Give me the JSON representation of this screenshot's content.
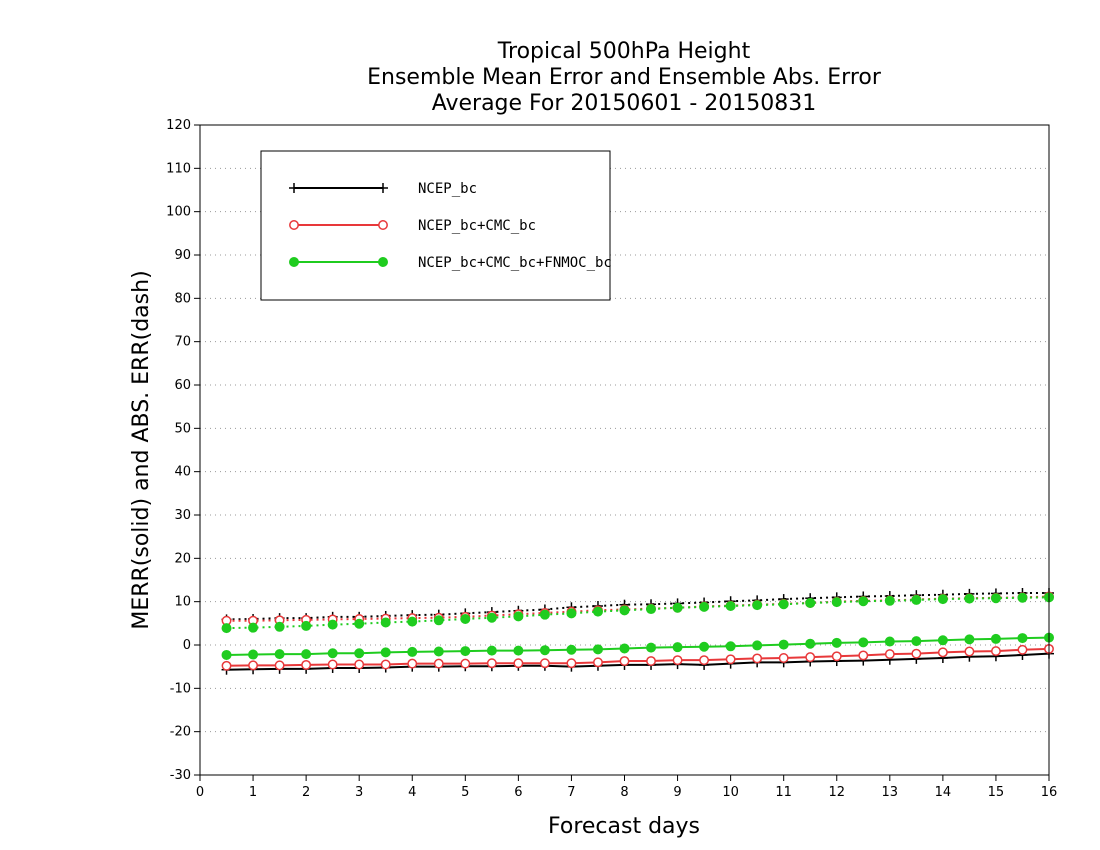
{
  "chart_data": {
    "type": "line",
    "title": [
      "Tropical 500hPa Height",
      "Ensemble Mean Error and Ensemble Abs. Error",
      "Average For 20150601 - 20150831"
    ],
    "xlabel": "Forecast days",
    "ylabel": "MERR(solid) and ABS. ERR(dash)",
    "xlim": [
      0,
      16
    ],
    "ylim": [
      -30,
      120
    ],
    "xticks": [
      0,
      1,
      2,
      3,
      4,
      5,
      6,
      7,
      8,
      9,
      10,
      11,
      12,
      13,
      14,
      15,
      16
    ],
    "yticks": [
      -30,
      -20,
      -10,
      0,
      10,
      20,
      30,
      40,
      50,
      60,
      70,
      80,
      90,
      100,
      110,
      120
    ],
    "grid": true,
    "legend_position": "top-left",
    "x": [
      0.5,
      1,
      1.5,
      2,
      2.5,
      3,
      3.5,
      4,
      4.5,
      5,
      5.5,
      6,
      6.5,
      7,
      7.5,
      8,
      8.5,
      9,
      9.5,
      10,
      10.5,
      11,
      11.5,
      12,
      12.5,
      13,
      13.5,
      14,
      14.5,
      15,
      15.5,
      16
    ],
    "series": [
      {
        "name": "NCEP_bc",
        "color": "#000000",
        "marker": "plus",
        "merr": [
          -5.7,
          -5.6,
          -5.5,
          -5.5,
          -5.3,
          -5.3,
          -5.2,
          -5.0,
          -5.0,
          -4.9,
          -4.9,
          -4.8,
          -4.8,
          -5.0,
          -4.8,
          -4.6,
          -4.6,
          -4.4,
          -4.6,
          -4.3,
          -4.0,
          -4.0,
          -3.8,
          -3.7,
          -3.6,
          -3.4,
          -3.2,
          -3.0,
          -2.7,
          -2.6,
          -2.3,
          -2.0
        ],
        "abs_err": [
          5.9,
          6.0,
          6.2,
          6.2,
          6.5,
          6.5,
          6.7,
          6.9,
          7.0,
          7.3,
          7.6,
          7.9,
          8.2,
          8.7,
          9.0,
          9.3,
          9.4,
          9.6,
          9.8,
          10.1,
          10.3,
          10.6,
          10.8,
          11.0,
          11.2,
          11.3,
          11.5,
          11.6,
          11.8,
          11.9,
          12.0,
          12.0
        ]
      },
      {
        "name": "NCEP_bc+CMC_bc",
        "color": "#e8383a",
        "marker": "open-circle",
        "merr": [
          -4.8,
          -4.7,
          -4.7,
          -4.6,
          -4.5,
          -4.5,
          -4.5,
          -4.3,
          -4.3,
          -4.3,
          -4.2,
          -4.2,
          -4.2,
          -4.2,
          -4.0,
          -3.7,
          -3.7,
          -3.5,
          -3.5,
          -3.3,
          -3.1,
          -3.0,
          -2.8,
          -2.6,
          -2.4,
          -2.1,
          -2.0,
          -1.7,
          -1.5,
          -1.4,
          -1.1,
          -0.9
        ],
        "abs_err": [
          5.6,
          5.6,
          5.7,
          5.8,
          5.9,
          6.0,
          6.1,
          6.2,
          6.3,
          6.5,
          6.8,
          7.1,
          7.4,
          7.7,
          8.0,
          8.2,
          8.4,
          8.6,
          8.9,
          9.1,
          9.3,
          9.5,
          9.7,
          10.0,
          10.2,
          10.3,
          10.5,
          10.7,
          10.8,
          10.9,
          11.0,
          11.2
        ]
      },
      {
        "name": "NCEP_bc+CMC_bc+FNMOC_bc",
        "color": "#1fcc1f",
        "marker": "filled-circle",
        "merr": [
          -2.3,
          -2.2,
          -2.1,
          -2.1,
          -1.9,
          -1.9,
          -1.7,
          -1.6,
          -1.5,
          -1.4,
          -1.3,
          -1.3,
          -1.2,
          -1.1,
          -1.0,
          -0.8,
          -0.6,
          -0.5,
          -0.4,
          -0.3,
          -0.1,
          0.1,
          0.3,
          0.5,
          0.6,
          0.8,
          0.9,
          1.1,
          1.3,
          1.4,
          1.6,
          1.7
        ],
        "abs_err": [
          3.9,
          4.0,
          4.2,
          4.4,
          4.7,
          4.9,
          5.2,
          5.4,
          5.7,
          6.0,
          6.3,
          6.6,
          7.0,
          7.3,
          7.7,
          8.0,
          8.3,
          8.6,
          8.8,
          9.0,
          9.2,
          9.4,
          9.7,
          9.9,
          10.1,
          10.2,
          10.4,
          10.6,
          10.7,
          10.8,
          10.9,
          11.0
        ]
      }
    ]
  }
}
